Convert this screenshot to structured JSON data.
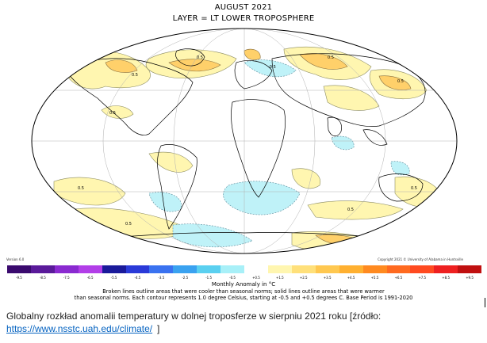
{
  "map": {
    "title": "AUGUST 2021",
    "subtitle": "LAYER = LT LOWER TROPOSPHERE",
    "projection": "Mollweide",
    "version_label": "Version 6.0",
    "copyright": "Copyright 2021 © University of Alabama in Huntsville",
    "legend": {
      "title": "Monthly Anomaly in °C",
      "ticks": [
        "-9.5",
        "-8.5",
        "-7.5",
        "-6.5",
        "-5.5",
        "-4.5",
        "-3.5",
        "-2.5",
        "-1.5",
        "-0.5",
        "+0.5",
        "+1.5",
        "+2.5",
        "+3.5",
        "+4.5",
        "+5.5",
        "+6.5",
        "+7.5",
        "+8.5",
        "+9.5"
      ],
      "colors": [
        "#3a0a6e",
        "#5a1a9a",
        "#8a2ad0",
        "#b23ee8",
        "#1a1a9a",
        "#2a3ad8",
        "#3a72f0",
        "#3aa2f0",
        "#5ad0f0",
        "#a8f0f8",
        "#ffffff",
        "#fff6b0",
        "#ffe07a",
        "#ffc850",
        "#ffb030",
        "#ff8a20",
        "#ff6a20",
        "#ff4a20",
        "#ee2020",
        "#c01010"
      ]
    },
    "description_line1": "Broken lines outline areas that were cooler than seasonal norms; solid lines outline areas that were warmer",
    "description_line2": "than seasonal norms. Each contour represents 1.0 degree Celsius, starting at -0.5 and +0.5 degrees C. Base Period is 1991-2020",
    "contour_labels": [
      "0.5",
      "0.5",
      "0.5",
      "0.5",
      "-0.5",
      "0.5",
      "0.5",
      "0.5",
      "0.5",
      "0.5"
    ]
  },
  "caption": {
    "text": "Globalny rozkład anomalii temperatury w dolnej troposferze w sierpniu 2021 roku [źródło:",
    "link": "https://www.nsstc.uah.edu/climate/",
    "end": "]"
  }
}
